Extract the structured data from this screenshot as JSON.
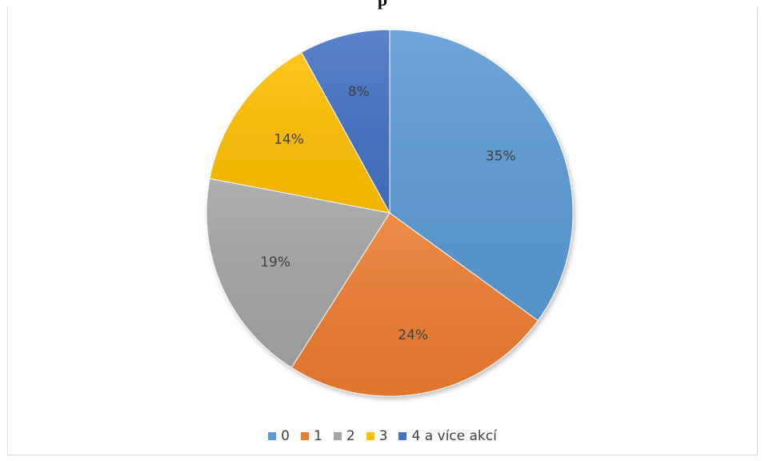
{
  "chart_data": {
    "type": "pie",
    "title": "",
    "categories": [
      "0",
      "1",
      "2",
      "3",
      "4 a více akcí"
    ],
    "values": [
      35,
      24,
      19,
      14,
      8
    ],
    "value_labels": [
      "35%",
      "24%",
      "19%",
      "14%",
      "8%"
    ],
    "colors": [
      "#5b9bd5",
      "#ed7d31",
      "#a5a5a5",
      "#ffc000",
      "#4472c4"
    ],
    "legend_position": "bottom",
    "start_angle_deg": 0,
    "direction": "clockwise"
  },
  "visible_title_fragment": "p"
}
